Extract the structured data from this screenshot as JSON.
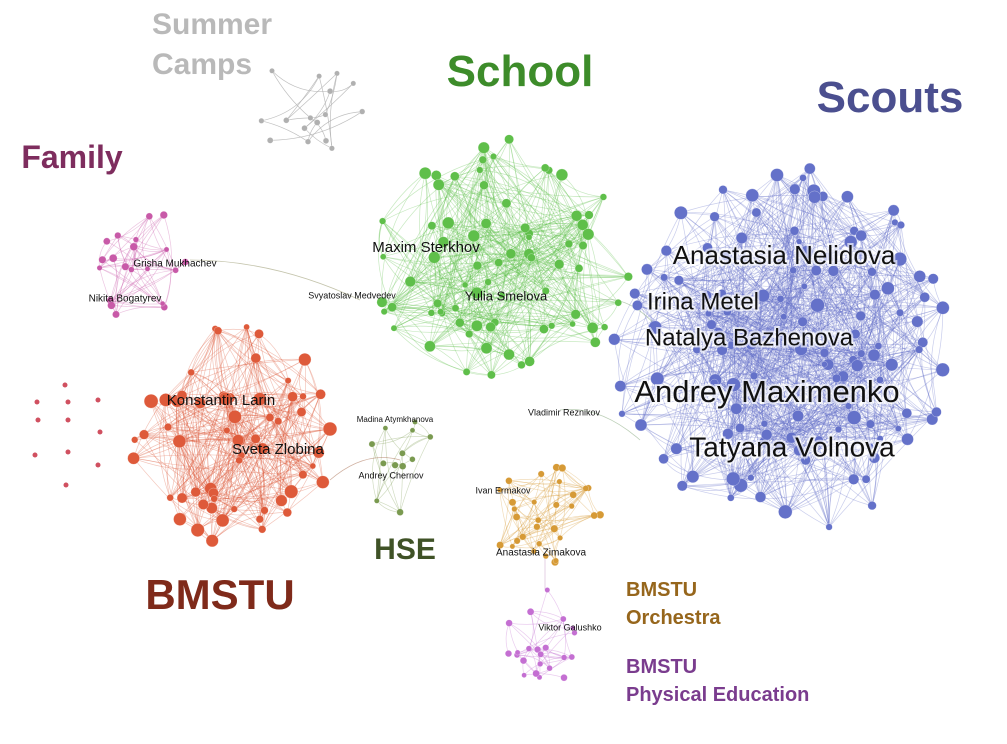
{
  "clusters": [
    {
      "id": "summer",
      "label": "Summer Camps",
      "label_lines": [
        "Summer",
        "Camps"
      ],
      "color": "#b9b9b9"
    },
    {
      "id": "school",
      "label": "School",
      "label_lines": [
        "School"
      ],
      "color": "#3d8c2a"
    },
    {
      "id": "scouts",
      "label": "Scouts",
      "label_lines": [
        "Scouts"
      ],
      "color": "#4b4f8f"
    },
    {
      "id": "family",
      "label": "Family",
      "label_lines": [
        "Family"
      ],
      "color": "#7e2d5e"
    },
    {
      "id": "bmstu",
      "label": "BMSTU",
      "label_lines": [
        "BMSTU"
      ],
      "color": "#7f2a1a"
    },
    {
      "id": "hse",
      "label": "HSE",
      "label_lines": [
        "HSE"
      ],
      "color": "#3f5226"
    },
    {
      "id": "orchestra",
      "label": "BMSTU Orchestra",
      "label_lines": [
        "BMSTU",
        "Orchestra"
      ],
      "color": "#96661c"
    },
    {
      "id": "pe",
      "label": "BMSTU Physical Education",
      "label_lines": [
        "BMSTU",
        "Physical Education"
      ],
      "color": "#7a3c8e"
    }
  ],
  "people": [
    {
      "name": "Anastasia Nelidova",
      "cluster": "scouts"
    },
    {
      "name": "Irina Metel",
      "cluster": "scouts"
    },
    {
      "name": "Natalya Bazhenova",
      "cluster": "scouts"
    },
    {
      "name": "Andrey Maximenko",
      "cluster": "scouts"
    },
    {
      "name": "Tatyana Volnova",
      "cluster": "scouts"
    },
    {
      "name": "Maxim Sterkhov",
      "cluster": "school"
    },
    {
      "name": "Yulia Smelova",
      "cluster": "school"
    },
    {
      "name": "Vladimir Reznikov",
      "cluster": "school"
    },
    {
      "name": "Svyatoslav Medvedev",
      "cluster": "school"
    },
    {
      "name": "Grisha Mukhachev",
      "cluster": "family"
    },
    {
      "name": "Nikita Bogatyrev",
      "cluster": "family"
    },
    {
      "name": "Konstantin Larin",
      "cluster": "bmstu"
    },
    {
      "name": "Sveta Zlobina",
      "cluster": "bmstu"
    },
    {
      "name": "Madina Atymkhanova",
      "cluster": "hse"
    },
    {
      "name": "Andrey Chernov",
      "cluster": "hse"
    },
    {
      "name": "Ivan Ermakov",
      "cluster": "orchestra"
    },
    {
      "name": "Anastasia Zimakova",
      "cluster": "orchestra"
    },
    {
      "name": "Viktor Galushko",
      "cluster": "pe"
    }
  ],
  "node_colors": {
    "summer": "#b0b0b0",
    "school": "#5fbf4a",
    "scouts": "#6471c9",
    "family": "#c85aa8",
    "bmstu": "#de5a3a",
    "hse": "#7a9a50",
    "orchestra": "#d69a36",
    "pe": "#c46fd2",
    "isolated": "#d05060"
  }
}
